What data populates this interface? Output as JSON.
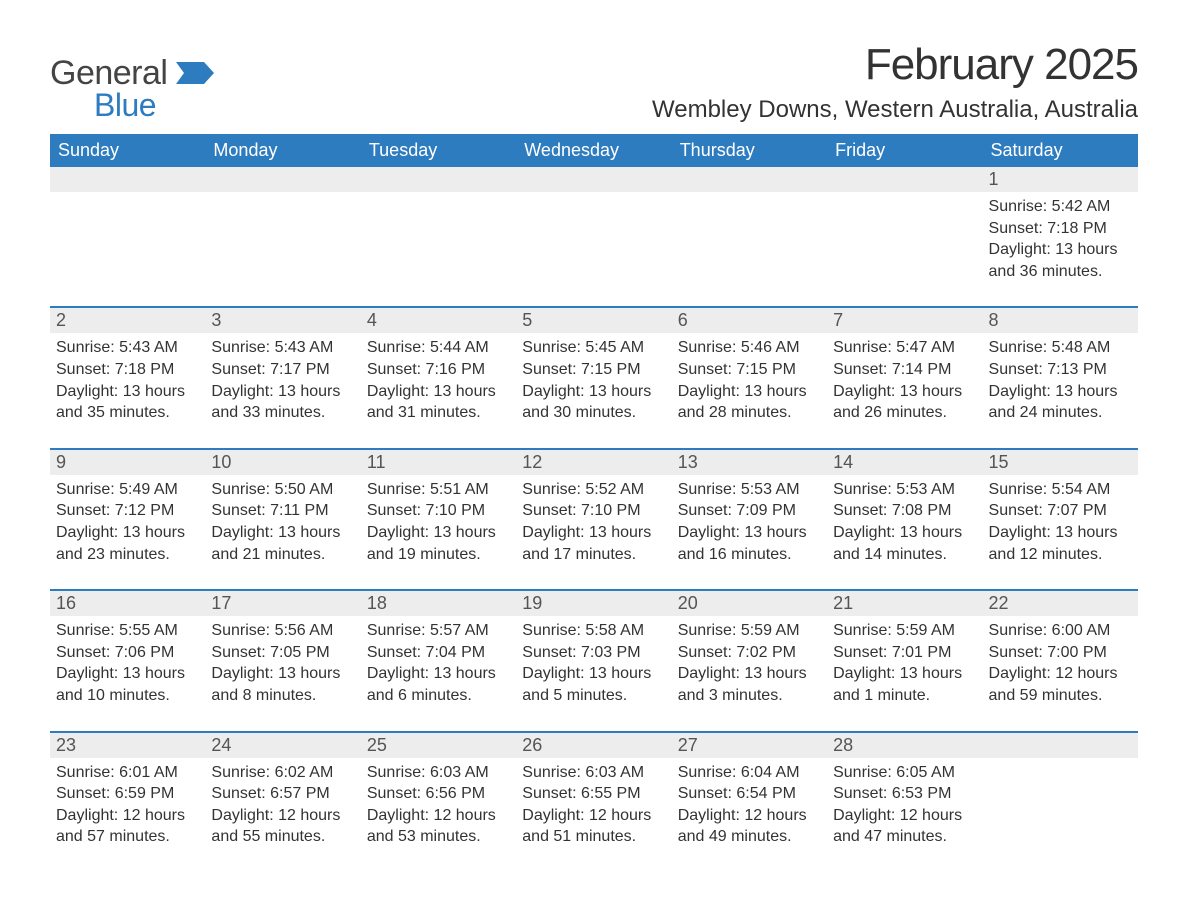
{
  "brand": {
    "word1": "General",
    "word2": "Blue",
    "word1_color": "#444444",
    "word2_color": "#2d7cc0",
    "flag_color": "#2d7cc0"
  },
  "title": "February 2025",
  "subtitle": "Wembley Downs, Western Australia, Australia",
  "colors": {
    "header_bg": "#2d7cc0",
    "header_fg": "#ffffff",
    "daynum_bg": "#ededed",
    "daynum_fg": "#555555",
    "body_bg": "#ffffff",
    "body_fg": "#333333",
    "separator": "#2d7cc0"
  },
  "typography": {
    "title_fontsize": 44,
    "subtitle_fontsize": 24,
    "dayhead_fontsize": 18,
    "daynum_fontsize": 18,
    "body_fontsize": 16
  },
  "day_names": [
    "Sunday",
    "Monday",
    "Tuesday",
    "Wednesday",
    "Thursday",
    "Friday",
    "Saturday"
  ],
  "weeks": [
    [
      {
        "day": "",
        "lines": []
      },
      {
        "day": "",
        "lines": []
      },
      {
        "day": "",
        "lines": []
      },
      {
        "day": "",
        "lines": []
      },
      {
        "day": "",
        "lines": []
      },
      {
        "day": "",
        "lines": []
      },
      {
        "day": "1",
        "lines": [
          "Sunrise: 5:42 AM",
          "Sunset: 7:18 PM",
          "Daylight: 13 hours and 36 minutes."
        ]
      }
    ],
    [
      {
        "day": "2",
        "lines": [
          "Sunrise: 5:43 AM",
          "Sunset: 7:18 PM",
          "Daylight: 13 hours and 35 minutes."
        ]
      },
      {
        "day": "3",
        "lines": [
          "Sunrise: 5:43 AM",
          "Sunset: 7:17 PM",
          "Daylight: 13 hours and 33 minutes."
        ]
      },
      {
        "day": "4",
        "lines": [
          "Sunrise: 5:44 AM",
          "Sunset: 7:16 PM",
          "Daylight: 13 hours and 31 minutes."
        ]
      },
      {
        "day": "5",
        "lines": [
          "Sunrise: 5:45 AM",
          "Sunset: 7:15 PM",
          "Daylight: 13 hours and 30 minutes."
        ]
      },
      {
        "day": "6",
        "lines": [
          "Sunrise: 5:46 AM",
          "Sunset: 7:15 PM",
          "Daylight: 13 hours and 28 minutes."
        ]
      },
      {
        "day": "7",
        "lines": [
          "Sunrise: 5:47 AM",
          "Sunset: 7:14 PM",
          "Daylight: 13 hours and 26 minutes."
        ]
      },
      {
        "day": "8",
        "lines": [
          "Sunrise: 5:48 AM",
          "Sunset: 7:13 PM",
          "Daylight: 13 hours and 24 minutes."
        ]
      }
    ],
    [
      {
        "day": "9",
        "lines": [
          "Sunrise: 5:49 AM",
          "Sunset: 7:12 PM",
          "Daylight: 13 hours and 23 minutes."
        ]
      },
      {
        "day": "10",
        "lines": [
          "Sunrise: 5:50 AM",
          "Sunset: 7:11 PM",
          "Daylight: 13 hours and 21 minutes."
        ]
      },
      {
        "day": "11",
        "lines": [
          "Sunrise: 5:51 AM",
          "Sunset: 7:10 PM",
          "Daylight: 13 hours and 19 minutes."
        ]
      },
      {
        "day": "12",
        "lines": [
          "Sunrise: 5:52 AM",
          "Sunset: 7:10 PM",
          "Daylight: 13 hours and 17 minutes."
        ]
      },
      {
        "day": "13",
        "lines": [
          "Sunrise: 5:53 AM",
          "Sunset: 7:09 PM",
          "Daylight: 13 hours and 16 minutes."
        ]
      },
      {
        "day": "14",
        "lines": [
          "Sunrise: 5:53 AM",
          "Sunset: 7:08 PM",
          "Daylight: 13 hours and 14 minutes."
        ]
      },
      {
        "day": "15",
        "lines": [
          "Sunrise: 5:54 AM",
          "Sunset: 7:07 PM",
          "Daylight: 13 hours and 12 minutes."
        ]
      }
    ],
    [
      {
        "day": "16",
        "lines": [
          "Sunrise: 5:55 AM",
          "Sunset: 7:06 PM",
          "Daylight: 13 hours and 10 minutes."
        ]
      },
      {
        "day": "17",
        "lines": [
          "Sunrise: 5:56 AM",
          "Sunset: 7:05 PM",
          "Daylight: 13 hours and 8 minutes."
        ]
      },
      {
        "day": "18",
        "lines": [
          "Sunrise: 5:57 AM",
          "Sunset: 7:04 PM",
          "Daylight: 13 hours and 6 minutes."
        ]
      },
      {
        "day": "19",
        "lines": [
          "Sunrise: 5:58 AM",
          "Sunset: 7:03 PM",
          "Daylight: 13 hours and 5 minutes."
        ]
      },
      {
        "day": "20",
        "lines": [
          "Sunrise: 5:59 AM",
          "Sunset: 7:02 PM",
          "Daylight: 13 hours and 3 minutes."
        ]
      },
      {
        "day": "21",
        "lines": [
          "Sunrise: 5:59 AM",
          "Sunset: 7:01 PM",
          "Daylight: 13 hours and 1 minute."
        ]
      },
      {
        "day": "22",
        "lines": [
          "Sunrise: 6:00 AM",
          "Sunset: 7:00 PM",
          "Daylight: 12 hours and 59 minutes."
        ]
      }
    ],
    [
      {
        "day": "23",
        "lines": [
          "Sunrise: 6:01 AM",
          "Sunset: 6:59 PM",
          "Daylight: 12 hours and 57 minutes."
        ]
      },
      {
        "day": "24",
        "lines": [
          "Sunrise: 6:02 AM",
          "Sunset: 6:57 PM",
          "Daylight: 12 hours and 55 minutes."
        ]
      },
      {
        "day": "25",
        "lines": [
          "Sunrise: 6:03 AM",
          "Sunset: 6:56 PM",
          "Daylight: 12 hours and 53 minutes."
        ]
      },
      {
        "day": "26",
        "lines": [
          "Sunrise: 6:03 AM",
          "Sunset: 6:55 PM",
          "Daylight: 12 hours and 51 minutes."
        ]
      },
      {
        "day": "27",
        "lines": [
          "Sunrise: 6:04 AM",
          "Sunset: 6:54 PM",
          "Daylight: 12 hours and 49 minutes."
        ]
      },
      {
        "day": "28",
        "lines": [
          "Sunrise: 6:05 AM",
          "Sunset: 6:53 PM",
          "Daylight: 12 hours and 47 minutes."
        ]
      },
      {
        "day": "",
        "lines": []
      }
    ]
  ]
}
